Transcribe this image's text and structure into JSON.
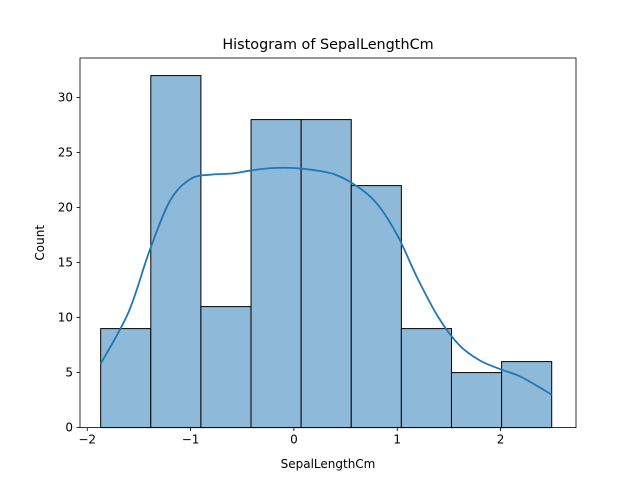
{
  "chart_data": {
    "type": "bar",
    "title": "Histogram of SepalLengthCm",
    "xlabel": "SepalLengthCm",
    "ylabel": "Count",
    "xlim": [
      -2.07,
      2.73
    ],
    "ylim": [
      0,
      33.6
    ],
    "xticks": [
      -2,
      -1,
      0,
      1,
      2
    ],
    "yticks": [
      0,
      5,
      10,
      15,
      20,
      25,
      30
    ],
    "grid": false,
    "bins": [
      {
        "start": -1.87,
        "end": -1.385,
        "count": 9
      },
      {
        "start": -1.385,
        "end": -0.9,
        "count": 32
      },
      {
        "start": -0.9,
        "end": -0.415,
        "count": 11
      },
      {
        "start": -0.415,
        "end": 0.07,
        "count": 28
      },
      {
        "start": 0.07,
        "end": 0.555,
        "count": 28
      },
      {
        "start": 0.555,
        "end": 1.04,
        "count": 22
      },
      {
        "start": 1.04,
        "end": 1.525,
        "count": 9
      },
      {
        "start": 1.525,
        "end": 2.01,
        "count": 5
      },
      {
        "start": 2.01,
        "end": 2.495,
        "count": 6
      }
    ],
    "kde": {
      "x": [
        -1.87,
        -1.6,
        -1.4,
        -1.2,
        -1.0,
        -0.8,
        -0.6,
        -0.4,
        -0.2,
        0.0,
        0.2,
        0.4,
        0.6,
        0.8,
        1.0,
        1.2,
        1.4,
        1.6,
        1.8,
        2.0,
        2.2,
        2.495
      ],
      "y": [
        5.8,
        10.5,
        16.0,
        20.6,
        22.6,
        23.0,
        23.1,
        23.4,
        23.6,
        23.6,
        23.4,
        23.0,
        22.0,
        20.4,
        17.5,
        13.5,
        10.0,
        7.5,
        6.1,
        5.3,
        4.6,
        3.0
      ]
    },
    "colors": {
      "bar_fill": "#8fb9d9",
      "bar_edge": "#000000",
      "kde_line": "#1f77b4"
    }
  }
}
